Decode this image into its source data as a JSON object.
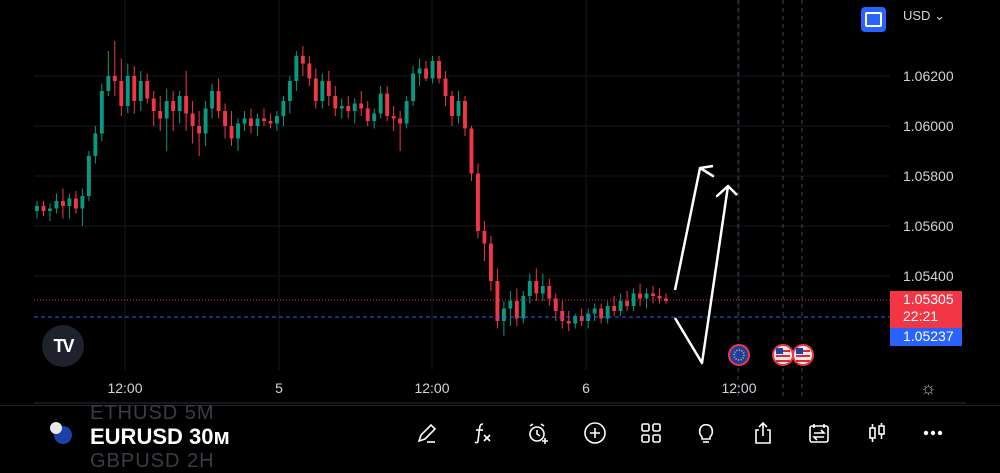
{
  "header": {
    "currency": "USD",
    "currency_caret": "⌄"
  },
  "price_axis": {
    "labels": [
      "1.06200",
      "1.06000",
      "1.05800",
      "1.05600",
      "1.05400"
    ],
    "last_price": "1.05305",
    "countdown": "22:21",
    "bid_price": "1.05237"
  },
  "time_axis": {
    "labels": [
      "12:00",
      "5",
      "12:00",
      "6",
      "12:00"
    ]
  },
  "logo_text": "TV",
  "toolbar": {
    "ghost_top": "ETHUSD 5M",
    "symbol": "EURUSD",
    "interval": "30м",
    "ghost_bottom": "GBPUSD 2H",
    "icons": [
      "pencil-icon",
      "function-icon",
      "alert-clock-icon",
      "plus-circle-icon",
      "grid-icon",
      "lightbulb-icon",
      "share-icon",
      "replay-icon",
      "candles-icon",
      "more-icon"
    ]
  },
  "chart_data": {
    "type": "candlestick",
    "symbol": "EURUSD",
    "interval": "30м",
    "ylim": [
      1.051,
      1.065
    ],
    "y_ticks": [
      1.054,
      1.056,
      1.058,
      1.06,
      1.062
    ],
    "last_price": 1.05305,
    "bid_price": 1.05237,
    "candles_ohlc": [
      [
        1.0566,
        1.057,
        1.0563,
        1.0568
      ],
      [
        1.0568,
        1.057,
        1.0564,
        1.0566
      ],
      [
        1.0566,
        1.0569,
        1.0562,
        1.0567
      ],
      [
        1.0567,
        1.0573,
        1.0565,
        1.057
      ],
      [
        1.057,
        1.0575,
        1.0563,
        1.0568
      ],
      [
        1.0568,
        1.0573,
        1.0563,
        1.0571
      ],
      [
        1.0571,
        1.0574,
        1.0565,
        1.0567
      ],
      [
        1.0567,
        1.0575,
        1.056,
        1.0572
      ],
      [
        1.0572,
        1.059,
        1.057,
        1.0588
      ],
      [
        1.0588,
        1.06,
        1.0585,
        1.0597
      ],
      [
        1.0597,
        1.0617,
        1.0594,
        1.0614
      ],
      [
        1.0614,
        1.063,
        1.0612,
        1.062
      ],
      [
        1.062,
        1.0634,
        1.0612,
        1.0618
      ],
      [
        1.0618,
        1.0627,
        1.0604,
        1.0608
      ],
      [
        1.0608,
        1.0625,
        1.0605,
        1.062
      ],
      [
        1.062,
        1.0624,
        1.0605,
        1.061
      ],
      [
        1.061,
        1.0622,
        1.0606,
        1.0618
      ],
      [
        1.0618,
        1.0621,
        1.0609,
        1.0611
      ],
      [
        1.0611,
        1.0614,
        1.06,
        1.0606
      ],
      [
        1.0606,
        1.0612,
        1.0598,
        1.0603
      ],
      [
        1.0603,
        1.0615,
        1.059,
        1.061
      ],
      [
        1.061,
        1.0614,
        1.0598,
        1.0606
      ],
      [
        1.0606,
        1.0614,
        1.0601,
        1.0612
      ],
      [
        1.0612,
        1.0622,
        1.0598,
        1.0605
      ],
      [
        1.0605,
        1.061,
        1.0593,
        1.06
      ],
      [
        1.06,
        1.0606,
        1.0588,
        1.0597
      ],
      [
        1.0597,
        1.061,
        1.0592,
        1.0607
      ],
      [
        1.0607,
        1.0617,
        1.0603,
        1.0614
      ],
      [
        1.0614,
        1.0619,
        1.0603,
        1.0606
      ],
      [
        1.0606,
        1.0609,
        1.0595,
        1.06
      ],
      [
        1.06,
        1.0606,
        1.0592,
        1.0595
      ],
      [
        1.0595,
        1.0603,
        1.059,
        1.0601
      ],
      [
        1.0601,
        1.0606,
        1.0598,
        1.0603
      ],
      [
        1.0603,
        1.0607,
        1.0597,
        1.06
      ],
      [
        1.06,
        1.0605,
        1.0596,
        1.0603
      ],
      [
        1.0603,
        1.0607,
        1.06,
        1.0602
      ],
      [
        1.0602,
        1.0605,
        1.0599,
        1.0601
      ],
      [
        1.0601,
        1.0606,
        1.0598,
        1.0604
      ],
      [
        1.0604,
        1.0612,
        1.06,
        1.061
      ],
      [
        1.061,
        1.062,
        1.0605,
        1.0618
      ],
      [
        1.0618,
        1.063,
        1.0614,
        1.0628
      ],
      [
        1.0628,
        1.0632,
        1.062,
        1.0625
      ],
      [
        1.0625,
        1.0628,
        1.0616,
        1.0619
      ],
      [
        1.0619,
        1.0623,
        1.0607,
        1.061
      ],
      [
        1.061,
        1.0621,
        1.0607,
        1.0618
      ],
      [
        1.0618,
        1.0622,
        1.0608,
        1.0612
      ],
      [
        1.0612,
        1.0616,
        1.0604,
        1.0607
      ],
      [
        1.0607,
        1.0611,
        1.0603,
        1.0608
      ],
      [
        1.0608,
        1.0612,
        1.0603,
        1.0606
      ],
      [
        1.0606,
        1.0611,
        1.0601,
        1.0609
      ],
      [
        1.0609,
        1.0614,
        1.0604,
        1.0607
      ],
      [
        1.0607,
        1.061,
        1.06,
        1.0602
      ],
      [
        1.0602,
        1.0607,
        1.0599,
        1.0605
      ],
      [
        1.0605,
        1.0616,
        1.0603,
        1.0613
      ],
      [
        1.0613,
        1.0616,
        1.0602,
        1.0604
      ],
      [
        1.0604,
        1.0608,
        1.0598,
        1.0603
      ],
      [
        1.0603,
        1.0606,
        1.059,
        1.0601
      ],
      [
        1.0601,
        1.0612,
        1.0599,
        1.061
      ],
      [
        1.061,
        1.0624,
        1.0608,
        1.0621
      ],
      [
        1.0621,
        1.0627,
        1.0616,
        1.0623
      ],
      [
        1.0623,
        1.0626,
        1.0618,
        1.0619
      ],
      [
        1.0619,
        1.0628,
        1.0617,
        1.0626
      ],
      [
        1.0626,
        1.0628,
        1.0617,
        1.0619
      ],
      [
        1.0619,
        1.0622,
        1.0608,
        1.0612
      ],
      [
        1.0612,
        1.0614,
        1.06,
        1.0604
      ],
      [
        1.0604,
        1.0614,
        1.0601,
        1.061
      ],
      [
        1.061,
        1.0612,
        1.0596,
        1.0599
      ],
      [
        1.0599,
        1.06,
        1.0578,
        1.0581
      ],
      [
        1.0581,
        1.0585,
        1.0555,
        1.0558
      ],
      [
        1.0558,
        1.0562,
        1.0546,
        1.0553
      ],
      [
        1.0553,
        1.0556,
        1.0534,
        1.0538
      ],
      [
        1.0538,
        1.0543,
        1.0519,
        1.0522
      ],
      [
        1.0522,
        1.053,
        1.0516,
        1.0527
      ],
      [
        1.0527,
        1.0534,
        1.052,
        1.053
      ],
      [
        1.053,
        1.0535,
        1.052,
        1.0523
      ],
      [
        1.0523,
        1.0534,
        1.0521,
        1.0532
      ],
      [
        1.0532,
        1.0541,
        1.0529,
        1.0538
      ],
      [
        1.0538,
        1.0543,
        1.053,
        1.0533
      ],
      [
        1.0533,
        1.0541,
        1.053,
        1.0536
      ],
      [
        1.0536,
        1.0539,
        1.0528,
        1.0531
      ],
      [
        1.0531,
        1.0533,
        1.0522,
        1.0526
      ],
      [
        1.0526,
        1.053,
        1.0519,
        1.0522
      ],
      [
        1.0522,
        1.0526,
        1.0518,
        1.0521
      ],
      [
        1.0521,
        1.0525,
        1.0519,
        1.0524
      ],
      [
        1.0524,
        1.0527,
        1.052,
        1.0522
      ],
      [
        1.0522,
        1.0527,
        1.0519,
        1.0525
      ],
      [
        1.0525,
        1.0529,
        1.0522,
        1.0527
      ],
      [
        1.0527,
        1.0529,
        1.0521,
        1.0523
      ],
      [
        1.0523,
        1.053,
        1.0521,
        1.0528
      ],
      [
        1.0528,
        1.0532,
        1.0524,
        1.0526
      ],
      [
        1.0526,
        1.0533,
        1.0524,
        1.053
      ],
      [
        1.053,
        1.0534,
        1.0526,
        1.0528
      ],
      [
        1.0528,
        1.0535,
        1.0526,
        1.0533
      ],
      [
        1.0533,
        1.0537,
        1.0528,
        1.0531
      ],
      [
        1.0531,
        1.0535,
        1.0527,
        1.0533
      ],
      [
        1.0533,
        1.0536,
        1.0529,
        1.0532
      ],
      [
        1.0532,
        1.0535,
        1.0529,
        1.0531
      ],
      [
        1.0531,
        1.0533,
        1.0529,
        1.053
      ]
    ]
  }
}
